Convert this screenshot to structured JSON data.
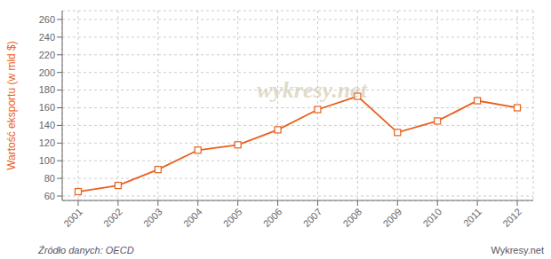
{
  "chart_data": {
    "type": "line",
    "ylabel": "Wartość eksportu (w mld $)",
    "annotations": [
      "wykresy.net",
      "Źródło danych:  OECD",
      "Wykresy.net"
    ],
    "x": [
      2001,
      2002,
      2003,
      2004,
      2005,
      2006,
      2007,
      2008,
      2009,
      2010,
      2011,
      2012
    ],
    "values": [
      65,
      72,
      90,
      112,
      118,
      135,
      158,
      173,
      132,
      145,
      168,
      160
    ],
    "color": "#E8601C",
    "marker": "square",
    "xlim": [
      2000.6,
      2012.4
    ],
    "xticks": [
      2001,
      2002,
      2003,
      2004,
      2005,
      2006,
      2007,
      2008,
      2009,
      2010,
      2011,
      2012
    ],
    "ylim": [
      55,
      270
    ],
    "yticks": [
      60,
      80,
      100,
      120,
      140,
      160,
      180,
      200,
      220,
      240,
      260
    ],
    "grid": true
  }
}
